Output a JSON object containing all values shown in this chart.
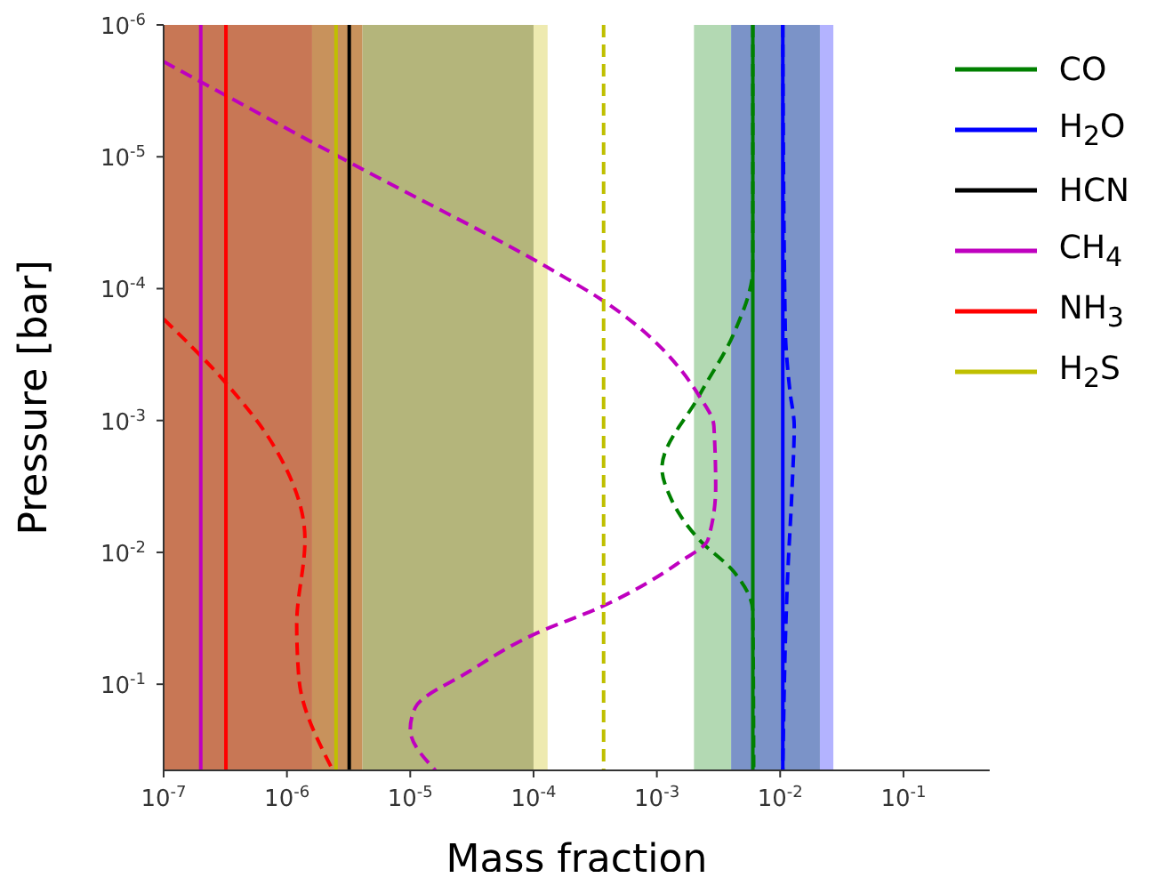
{
  "chart_data": {
    "type": "line",
    "xlabel": "Mass fraction",
    "ylabel": "Pressure [bar]",
    "log": "xy",
    "xlim": [
      1e-07,
      0.5
    ],
    "ylim": [
      0.45,
      1e-06
    ],
    "xticks": [
      {
        "value": 1e-07,
        "label": "10$^{-7}$"
      },
      {
        "value": 1e-06,
        "label": "10$^{-6}$"
      },
      {
        "value": 1e-05,
        "label": "10$^{-5}$"
      },
      {
        "value": 0.0001,
        "label": "10$^{-4}$"
      },
      {
        "value": 0.001,
        "label": "10$^{-3}$"
      },
      {
        "value": 0.01,
        "label": "10$^{-2}$"
      },
      {
        "value": 0.1,
        "label": "10$^{-1}$"
      }
    ],
    "yticks": [
      {
        "value": 1e-06,
        "label": "10$^{-6}$"
      },
      {
        "value": 1e-05,
        "label": "10$^{-5}$"
      },
      {
        "value": 0.0001,
        "label": "10$^{-4}$"
      },
      {
        "value": 0.001,
        "label": "10$^{-3}$"
      },
      {
        "value": 0.01,
        "label": "10$^{-2}$"
      },
      {
        "value": 0.1,
        "label": "10$^{-1}$"
      }
    ],
    "grid": false,
    "legend": "top right",
    "marker": "none",
    "bands": [
      {
        "axis": "x",
        "from": 1e-07,
        "to": 1.6e-06,
        "color": "#c87755"
      },
      {
        "axis": "x",
        "from": 1.6e-06,
        "to": 4.1e-06,
        "color": "#c8925c"
      },
      {
        "axis": "x",
        "from": 4.1e-06,
        "to": 0.0001,
        "color": "#b4b57b"
      },
      {
        "axis": "x",
        "from": 0.0001,
        "to": 0.00013,
        "color": "#eeeab0"
      },
      {
        "axis": "x",
        "from": 0.002,
        "to": 0.004,
        "color": "#b3d9b3"
      },
      {
        "axis": "x",
        "from": 0.004,
        "to": 0.021,
        "color": "#7b93c8"
      },
      {
        "axis": "x",
        "from": 0.021,
        "to": 0.027,
        "color": "#b3b3ff"
      }
    ],
    "series": [
      {
        "name": "CO",
        "color": "#008000",
        "x": [
          0.006,
          0.006
        ],
        "values": [
          1e-06,
          0.45
        ],
        "line_style": "solid"
      },
      {
        "name": "H$_{2}$O",
        "color": "#0000ff",
        "x": [
          0.0105,
          0.0105
        ],
        "values": [
          1e-06,
          0.45
        ],
        "line_style": "solid"
      },
      {
        "name": "HCN",
        "color": "#000000",
        "x": [
          3.2e-06,
          3.2e-06
        ],
        "values": [
          1e-06,
          0.45
        ],
        "line_style": "solid"
      },
      {
        "name": "CH$_{4}$",
        "color": "#bf00bf",
        "x": [
          2e-07,
          2e-07
        ],
        "values": [
          1e-06,
          0.45
        ],
        "line_style": "solid"
      },
      {
        "name": "NH$_{3}$",
        "color": "#ff0000",
        "x": [
          3.2e-07,
          3.2e-07
        ],
        "values": [
          1e-06,
          0.45
        ],
        "line_style": "solid"
      },
      {
        "name": "H$_{2}$S",
        "color": "#bfbf00",
        "x": [
          2.5e-06,
          2.5e-06
        ],
        "values": [
          1e-06,
          0.45
        ],
        "line_style": "solid"
      },
      {
        "color": "#008000",
        "x": [
          0.006,
          0.006,
          0.0042,
          0.0022,
          0.0011,
          0.0013,
          0.0022,
          0.0042,
          0.006,
          0.0061
        ],
        "values": [
          1e-06,
          6.9e-05,
          0.00022,
          0.00065,
          0.0023,
          0.0039,
          0.008,
          0.014,
          0.028,
          0.45
        ],
        "line_style": "dashed"
      },
      {
        "color": "#0000ff",
        "x": [
          0.0105,
          0.011,
          0.012,
          0.013,
          0.0125,
          0.0115,
          0.0105
        ],
        "values": [
          1e-06,
          0.0002,
          0.0006,
          0.0011,
          0.0032,
          0.015,
          0.45
        ],
        "line_style": "dashed"
      },
      {
        "color": "#bf00bf",
        "x": [
          1e-07,
          3.2e-06,
          0.000155,
          0.00035,
          0.0022,
          0.0029,
          0.003,
          0.0026,
          0.0015,
          0.00035,
          0.0001,
          3e-05,
          1.1e-05,
          1e-05,
          1.6e-05
        ],
        "values": [
          1.9e-06,
          1.1e-05,
          7.6e-05,
          0.00012,
          0.00065,
          0.0011,
          0.0032,
          0.008,
          0.012,
          0.026,
          0.042,
          0.08,
          0.15,
          0.22,
          0.45
        ],
        "line_style": "dashed"
      },
      {
        "color": "#ff0000",
        "x": [
          1e-07,
          3.2e-07,
          7.8e-07,
          1.4e-06,
          1.2e-06,
          1.25e-06,
          2.3e-06
        ],
        "values": [
          0.00017,
          0.00052,
          0.00155,
          0.008,
          0.035,
          0.09,
          0.43
        ],
        "line_style": "dashed"
      },
      {
        "color": "#bfbf00",
        "x": [
          0.00037,
          0.00037
        ],
        "values": [
          1e-06,
          0.45
        ],
        "line_style": "dashed"
      }
    ]
  }
}
